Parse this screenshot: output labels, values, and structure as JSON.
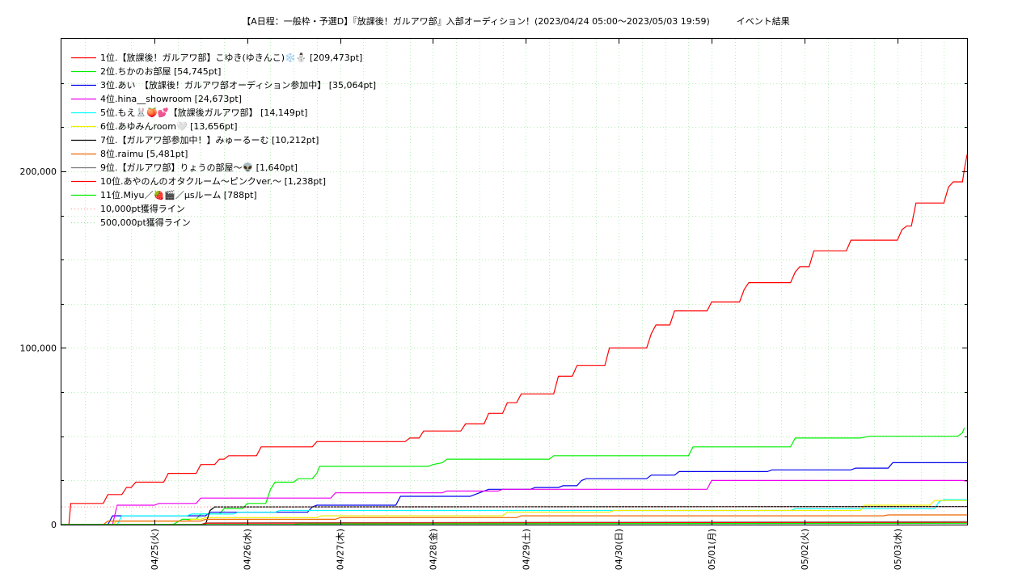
{
  "chart_data": {
    "type": "line",
    "title": "【A日程：一般枠・予選D】『放課後！ガルアワ部』入部オーディション！(2023/04/24 05:00〜2023/05/03 19:59)　　　イベント結果",
    "ylim": [
      0,
      275000
    ],
    "yticks": [
      {
        "value": 0,
        "label": "0"
      },
      {
        "value": 100000,
        "label": "100,000"
      },
      {
        "value": 200000,
        "label": "200,000"
      }
    ],
    "xlim": [
      0,
      9.75
    ],
    "xticks": [
      {
        "value": 1,
        "label": "04/25(火)"
      },
      {
        "value": 2,
        "label": "04/26(水)"
      },
      {
        "value": 3,
        "label": "04/27(木)"
      },
      {
        "value": 4,
        "label": "04/28(金)"
      },
      {
        "value": 5,
        "label": "04/29(土)"
      },
      {
        "value": 6,
        "label": "04/30(日)"
      },
      {
        "value": 7,
        "label": "05/01(月)"
      },
      {
        "value": 8,
        "label": "05/02(火)"
      },
      {
        "value": 9,
        "label": "05/03(水)"
      }
    ],
    "grid": true,
    "legend_position": "top-left",
    "series": [
      {
        "name": "1位.【放課後！ガルアワ部】こゆき(ゆきんこ)❄️⛄ [209,473pt]",
        "color": "#ff0000",
        "dashed": false,
        "points": [
          [
            0,
            0
          ],
          [
            0.08,
            0
          ],
          [
            0.1,
            12000
          ],
          [
            0.45,
            12000
          ],
          [
            0.5,
            17000
          ],
          [
            0.65,
            17000
          ],
          [
            0.7,
            21000
          ],
          [
            0.75,
            21000
          ],
          [
            0.8,
            24000
          ],
          [
            1.1,
            24000
          ],
          [
            1.15,
            29000
          ],
          [
            1.45,
            29000
          ],
          [
            1.5,
            34000
          ],
          [
            1.65,
            34000
          ],
          [
            1.7,
            37000
          ],
          [
            1.75,
            37000
          ],
          [
            1.8,
            39000
          ],
          [
            2.1,
            39000
          ],
          [
            2.15,
            44000
          ],
          [
            2.7,
            44000
          ],
          [
            2.75,
            47000
          ],
          [
            3.7,
            47000
          ],
          [
            3.75,
            49000
          ],
          [
            3.85,
            49000
          ],
          [
            3.9,
            53000
          ],
          [
            4.3,
            53000
          ],
          [
            4.35,
            57000
          ],
          [
            4.55,
            57000
          ],
          [
            4.6,
            63000
          ],
          [
            4.75,
            63000
          ],
          [
            4.8,
            69000
          ],
          [
            4.9,
            69000
          ],
          [
            4.95,
            74000
          ],
          [
            5.3,
            74000
          ],
          [
            5.35,
            84000
          ],
          [
            5.5,
            84000
          ],
          [
            5.55,
            90000
          ],
          [
            5.85,
            90000
          ],
          [
            5.9,
            100000
          ],
          [
            6.3,
            100000
          ],
          [
            6.35,
            108000
          ],
          [
            6.4,
            113000
          ],
          [
            6.55,
            113000
          ],
          [
            6.6,
            121000
          ],
          [
            6.95,
            121000
          ],
          [
            7.0,
            126000
          ],
          [
            7.3,
            126000
          ],
          [
            7.35,
            133000
          ],
          [
            7.4,
            137000
          ],
          [
            7.85,
            137000
          ],
          [
            7.9,
            143000
          ],
          [
            7.95,
            146000
          ],
          [
            8.05,
            146000
          ],
          [
            8.1,
            155000
          ],
          [
            8.45,
            155000
          ],
          [
            8.5,
            161000
          ],
          [
            9.0,
            161000
          ],
          [
            9.05,
            167000
          ],
          [
            9.1,
            169000
          ],
          [
            9.15,
            169000
          ],
          [
            9.2,
            182000
          ],
          [
            9.5,
            182000
          ],
          [
            9.55,
            191000
          ],
          [
            9.6,
            194000
          ],
          [
            9.7,
            194000
          ],
          [
            9.72,
            201000
          ],
          [
            9.75,
            209473
          ]
        ]
      },
      {
        "name": "2位.ちかのお部屋 [54,745pt]",
        "color": "#00ee00",
        "dashed": false,
        "points": [
          [
            0,
            0
          ],
          [
            1.2,
            0
          ],
          [
            1.3,
            3000
          ],
          [
            1.45,
            3000
          ],
          [
            1.5,
            6000
          ],
          [
            1.7,
            6000
          ],
          [
            1.75,
            9000
          ],
          [
            1.95,
            9000
          ],
          [
            2.0,
            12000
          ],
          [
            2.2,
            12000
          ],
          [
            2.25,
            20000
          ],
          [
            2.3,
            24000
          ],
          [
            2.5,
            24000
          ],
          [
            2.55,
            26000
          ],
          [
            2.7,
            26000
          ],
          [
            2.75,
            29000
          ],
          [
            2.78,
            33000
          ],
          [
            3.95,
            33000
          ],
          [
            4.0,
            34000
          ],
          [
            4.1,
            35000
          ],
          [
            4.15,
            37000
          ],
          [
            5.25,
            37000
          ],
          [
            5.3,
            39000
          ],
          [
            6.75,
            39000
          ],
          [
            6.8,
            44000
          ],
          [
            7.85,
            44000
          ],
          [
            7.9,
            49000
          ],
          [
            8.6,
            49000
          ],
          [
            8.7,
            50000
          ],
          [
            9.65,
            50000
          ],
          [
            9.7,
            52000
          ],
          [
            9.72,
            54745
          ]
        ]
      },
      {
        "name": "3位.あい　【放課後！ガルアワ部オーディション参加中】 [35,064pt]",
        "color": "#0000ee",
        "dashed": false,
        "points": [
          [
            0,
            0
          ],
          [
            0.5,
            0
          ],
          [
            0.55,
            5000
          ],
          [
            1.55,
            5000
          ],
          [
            1.6,
            7000
          ],
          [
            2.65,
            7000
          ],
          [
            2.7,
            10000
          ],
          [
            2.75,
            11000
          ],
          [
            3.6,
            11000
          ],
          [
            3.65,
            16000
          ],
          [
            4.4,
            16000
          ],
          [
            4.5,
            18000
          ],
          [
            4.6,
            20000
          ],
          [
            5.05,
            20000
          ],
          [
            5.1,
            21000
          ],
          [
            5.35,
            21000
          ],
          [
            5.4,
            22000
          ],
          [
            5.55,
            22000
          ],
          [
            5.6,
            25000
          ],
          [
            5.65,
            26000
          ],
          [
            6.3,
            26000
          ],
          [
            6.35,
            28000
          ],
          [
            6.6,
            28000
          ],
          [
            6.65,
            30000
          ],
          [
            7.6,
            30000
          ],
          [
            7.65,
            31000
          ],
          [
            8.5,
            31000
          ],
          [
            8.55,
            32000
          ],
          [
            8.9,
            32000
          ],
          [
            8.95,
            35064
          ],
          [
            9.75,
            35064
          ]
        ]
      },
      {
        "name": "4位.hina__showroom [24,673pt]",
        "color": "#ee00ee",
        "dashed": false,
        "points": [
          [
            0,
            0
          ],
          [
            0.55,
            0
          ],
          [
            0.6,
            11000
          ],
          [
            1.0,
            11000
          ],
          [
            1.05,
            12000
          ],
          [
            1.45,
            12000
          ],
          [
            1.5,
            15000
          ],
          [
            2.9,
            15000
          ],
          [
            2.95,
            18000
          ],
          [
            4.1,
            18000
          ],
          [
            4.15,
            19000
          ],
          [
            4.7,
            19000
          ],
          [
            4.75,
            20000
          ],
          [
            6.95,
            20000
          ],
          [
            7.0,
            25000
          ],
          [
            9.7,
            25000
          ],
          [
            9.75,
            24673
          ]
        ]
      },
      {
        "name": "5位.もえ🐰🍑💕【放課後ガルアワ部】 [14,149pt]",
        "color": "#00ffff",
        "dashed": false,
        "points": [
          [
            0,
            0
          ],
          [
            0.6,
            0
          ],
          [
            0.65,
            5000
          ],
          [
            1.35,
            5000
          ],
          [
            1.4,
            6000
          ],
          [
            1.85,
            6000
          ],
          [
            1.9,
            7000
          ],
          [
            2.3,
            7000
          ],
          [
            2.35,
            8000
          ],
          [
            7.85,
            8000
          ],
          [
            7.9,
            9000
          ],
          [
            9.4,
            9000
          ],
          [
            9.45,
            13000
          ],
          [
            9.5,
            14149
          ],
          [
            9.75,
            14149
          ]
        ]
      },
      {
        "name": "6位.あゆみんroom🤍 [13,656pt]",
        "color": "#eeee00",
        "dashed": false,
        "points": [
          [
            0,
            0
          ],
          [
            0.55,
            0
          ],
          [
            0.6,
            2000
          ],
          [
            1.35,
            2000
          ],
          [
            1.4,
            3000
          ],
          [
            1.5,
            3000
          ],
          [
            1.55,
            4000
          ],
          [
            2.75,
            4000
          ],
          [
            2.8,
            5000
          ],
          [
            4.75,
            5000
          ],
          [
            4.8,
            7000
          ],
          [
            5.9,
            7000
          ],
          [
            5.95,
            8000
          ],
          [
            8.6,
            8000
          ],
          [
            8.65,
            11000
          ],
          [
            9.35,
            11000
          ],
          [
            9.4,
            13656
          ],
          [
            9.75,
            13656
          ]
        ]
      },
      {
        "name": "7位.【ガルアワ部参加中！】みゅーるーむ [10,212pt]",
        "color": "#000000",
        "dashed": false,
        "points": [
          [
            0,
            0
          ],
          [
            1.55,
            0
          ],
          [
            1.6,
            8000
          ],
          [
            1.65,
            10000
          ],
          [
            9.75,
            10212
          ]
        ]
      },
      {
        "name": "8位.raimu [5,481pt]",
        "color": "#ee6600",
        "dashed": false,
        "points": [
          [
            0,
            0
          ],
          [
            0.45,
            0
          ],
          [
            0.5,
            2000
          ],
          [
            1.5,
            2000
          ],
          [
            1.55,
            3000
          ],
          [
            2.95,
            3000
          ],
          [
            3.0,
            4000
          ],
          [
            4.9,
            4000
          ],
          [
            4.95,
            5000
          ],
          [
            8.85,
            5000
          ],
          [
            8.9,
            5481
          ],
          [
            9.75,
            5481
          ]
        ]
      },
      {
        "name": "9位.【ガルアワ部】りょうの部屋〜👽 [1,640pt]",
        "color": "#777777",
        "dashed": false,
        "points": [
          [
            0,
            0
          ],
          [
            1.5,
            0
          ],
          [
            1.55,
            1000
          ],
          [
            9.75,
            1640
          ]
        ]
      },
      {
        "name": "10位.あやのんのオタクルーム〜ピンクver.〜 [1,238pt]",
        "color": "#ff0000",
        "dashed": false,
        "points": [
          [
            0,
            0
          ],
          [
            1.5,
            0
          ],
          [
            1.55,
            800
          ],
          [
            9.75,
            1238
          ]
        ]
      },
      {
        "name": "11位.Miyu／🍓🎬／µsルーム [788pt]",
        "color": "#00ee00",
        "dashed": false,
        "points": [
          [
            0,
            0
          ],
          [
            2.5,
            0
          ],
          [
            2.55,
            400
          ],
          [
            9.75,
            788
          ]
        ]
      },
      {
        "name": "10,000pt獲得ライン",
        "color": "#ff9999",
        "dashed": true,
        "points": [
          [
            0,
            10000
          ],
          [
            9.75,
            10000
          ]
        ]
      },
      {
        "name": "500,000pt獲得ライン",
        "color": "#99dd99",
        "dashed": true,
        "points": []
      }
    ]
  }
}
